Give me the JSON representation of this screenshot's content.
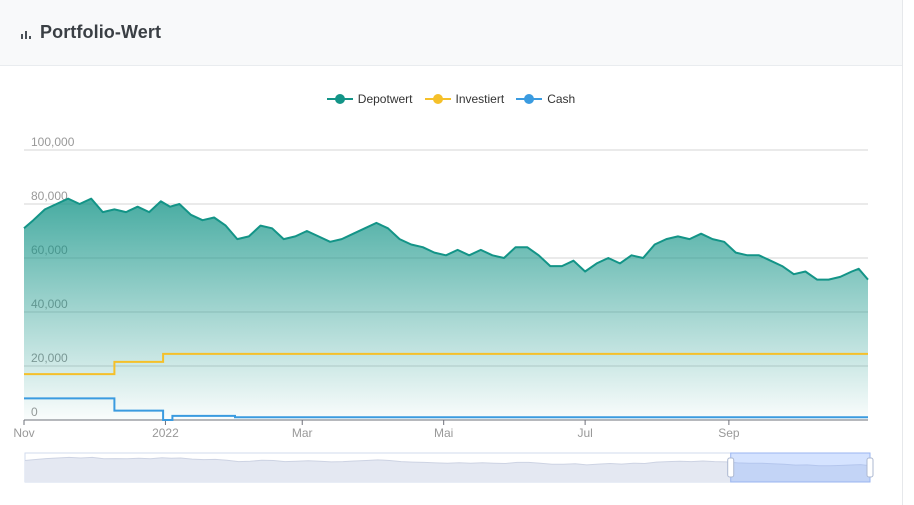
{
  "header": {
    "title": "Portfolio-Wert",
    "icon": "bar-chart-icon"
  },
  "colors": {
    "depotwert": "#139487",
    "investiert": "#f5c02a",
    "cash": "#3a9be0",
    "grid": "#d6d6d6",
    "axis_text": "#999999"
  },
  "chart_data": {
    "type": "line",
    "title": "Portfolio-Wert",
    "xlabel": "",
    "ylabel": "",
    "ylim": [
      0,
      100000
    ],
    "y_ticks": [
      0,
      20000,
      40000,
      60000,
      80000,
      100000
    ],
    "y_tick_labels": [
      "0",
      "20,000",
      "40,000",
      "60,000",
      "80,000",
      "100,000"
    ],
    "x_range": [
      "2021-11-01",
      "2022-10-31"
    ],
    "x_ticks": [
      {
        "date": "2021-11-01",
        "label": "Nov"
      },
      {
        "date": "2022-01-01",
        "label": "2022"
      },
      {
        "date": "2022-03-01",
        "label": "Mar"
      },
      {
        "date": "2022-05-01",
        "label": "Mai"
      },
      {
        "date": "2022-07-01",
        "label": "Jul"
      },
      {
        "date": "2022-09-01",
        "label": "Sep"
      }
    ],
    "grid": true,
    "legend": "top-center",
    "data_zoom": {
      "start_date": "2022-09-01",
      "end_date": "2022-10-31"
    },
    "series": [
      {
        "name": "Depotwert",
        "style": "area",
        "points": [
          [
            "2021-11-01",
            71000
          ],
          [
            "2021-11-05",
            74000
          ],
          [
            "2021-11-10",
            78000
          ],
          [
            "2021-11-15",
            80000
          ],
          [
            "2021-11-20",
            82000
          ],
          [
            "2021-11-25",
            80000
          ],
          [
            "2021-11-30",
            82000
          ],
          [
            "2021-12-05",
            77000
          ],
          [
            "2021-12-10",
            78000
          ],
          [
            "2021-12-15",
            77000
          ],
          [
            "2021-12-20",
            79000
          ],
          [
            "2021-12-25",
            77000
          ],
          [
            "2021-12-30",
            81000
          ],
          [
            "2022-01-03",
            79000
          ],
          [
            "2022-01-07",
            80000
          ],
          [
            "2022-01-12",
            76000
          ],
          [
            "2022-01-17",
            74000
          ],
          [
            "2022-01-22",
            75000
          ],
          [
            "2022-01-27",
            72000
          ],
          [
            "2022-02-01",
            67000
          ],
          [
            "2022-02-06",
            68000
          ],
          [
            "2022-02-11",
            72000
          ],
          [
            "2022-02-16",
            71000
          ],
          [
            "2022-02-21",
            67000
          ],
          [
            "2022-02-26",
            68000
          ],
          [
            "2022-03-03",
            70000
          ],
          [
            "2022-03-08",
            68000
          ],
          [
            "2022-03-13",
            66000
          ],
          [
            "2022-03-18",
            67000
          ],
          [
            "2022-03-23",
            69000
          ],
          [
            "2022-03-28",
            71000
          ],
          [
            "2022-04-02",
            73000
          ],
          [
            "2022-04-07",
            71000
          ],
          [
            "2022-04-12",
            67000
          ],
          [
            "2022-04-17",
            65000
          ],
          [
            "2022-04-22",
            64000
          ],
          [
            "2022-04-27",
            62000
          ],
          [
            "2022-05-02",
            61000
          ],
          [
            "2022-05-07",
            63000
          ],
          [
            "2022-05-12",
            61000
          ],
          [
            "2022-05-17",
            63000
          ],
          [
            "2022-05-22",
            61000
          ],
          [
            "2022-05-27",
            60000
          ],
          [
            "2022-06-01",
            64000
          ],
          [
            "2022-06-06",
            64000
          ],
          [
            "2022-06-11",
            61000
          ],
          [
            "2022-06-16",
            57000
          ],
          [
            "2022-06-21",
            57000
          ],
          [
            "2022-06-26",
            59000
          ],
          [
            "2022-07-01",
            55000
          ],
          [
            "2022-07-06",
            58000
          ],
          [
            "2022-07-11",
            60000
          ],
          [
            "2022-07-16",
            58000
          ],
          [
            "2022-07-21",
            61000
          ],
          [
            "2022-07-26",
            60000
          ],
          [
            "2022-07-31",
            65000
          ],
          [
            "2022-08-05",
            67000
          ],
          [
            "2022-08-10",
            68000
          ],
          [
            "2022-08-15",
            67000
          ],
          [
            "2022-08-20",
            69000
          ],
          [
            "2022-08-25",
            67000
          ],
          [
            "2022-08-30",
            66000
          ],
          [
            "2022-09-04",
            62000
          ],
          [
            "2022-09-09",
            61000
          ],
          [
            "2022-09-14",
            61000
          ],
          [
            "2022-09-19",
            59000
          ],
          [
            "2022-09-24",
            57000
          ],
          [
            "2022-09-29",
            54000
          ],
          [
            "2022-10-04",
            55000
          ],
          [
            "2022-10-09",
            52000
          ],
          [
            "2022-10-14",
            52000
          ],
          [
            "2022-10-19",
            53000
          ],
          [
            "2022-10-24",
            55000
          ],
          [
            "2022-10-27",
            56000
          ],
          [
            "2022-10-31",
            52000
          ]
        ]
      },
      {
        "name": "Investiert",
        "style": "step",
        "points": [
          [
            "2021-11-01",
            17000
          ],
          [
            "2021-12-10",
            17000
          ],
          [
            "2021-12-10",
            21500
          ],
          [
            "2021-12-31",
            21500
          ],
          [
            "2021-12-31",
            24500
          ],
          [
            "2022-10-31",
            24500
          ]
        ]
      },
      {
        "name": "Cash",
        "style": "step",
        "points": [
          [
            "2021-11-01",
            8000
          ],
          [
            "2021-12-10",
            8000
          ],
          [
            "2021-12-10",
            3500
          ],
          [
            "2021-12-31",
            3500
          ],
          [
            "2021-12-31",
            0
          ],
          [
            "2022-01-04",
            0
          ],
          [
            "2022-01-04",
            1500
          ],
          [
            "2022-01-31",
            1500
          ],
          [
            "2022-01-31",
            1000
          ],
          [
            "2022-10-31",
            1000
          ]
        ]
      }
    ]
  }
}
